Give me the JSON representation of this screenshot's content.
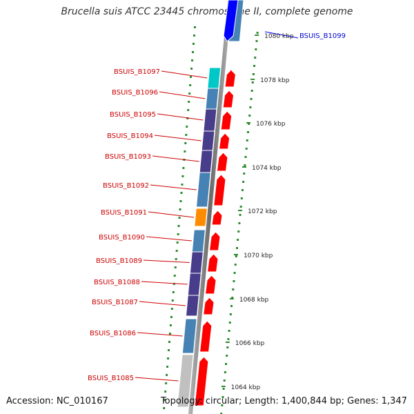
{
  "title": "Brucella suis ATCC 23445 chromosome II, complete genome",
  "accession_text": "Accession: NC_010167",
  "summary_text": "Topology: circular; Length: 1,400,844 bp; Genes: 1,347",
  "colors": {
    "gene_label": "#cc0000",
    "highlight_label": "#0000cc",
    "forward_strand": "#ff0000",
    "tick_dots": "#2e8b2e",
    "backbone": "#808080"
  },
  "scale_labels": [
    "1080 kbp",
    "1078 kbp",
    "1076 kbp",
    "1074 kbp",
    "1072 kbp",
    "1070 kbp",
    "1068 kbp",
    "1066 kbp",
    "1064 kbp"
  ],
  "genes": [
    {
      "label": "BSUIS_B1097",
      "color": "#00c8c8"
    },
    {
      "label": "BSUIS_B1096",
      "color": "#4682b4"
    },
    {
      "label": "BSUIS_B1095",
      "color": "#483d8b"
    },
    {
      "label": "BSUIS_B1094",
      "color": "#483d8b"
    },
    {
      "label": "BSUIS_B1093",
      "color": "#483d8b"
    },
    {
      "label": "BSUIS_B1092",
      "color": "#4682b4"
    },
    {
      "label": "BSUIS_B1091",
      "color": "#ff8c00"
    },
    {
      "label": "BSUIS_B1090",
      "color": "#4682b4"
    },
    {
      "label": "BSUIS_B1089",
      "color": "#483d8b"
    },
    {
      "label": "BSUIS_B1088",
      "color": "#483d8b"
    },
    {
      "label": "BSUIS_B1087",
      "color": "#483d8b"
    },
    {
      "label": "BSUIS_B1086",
      "color": "#4682b4"
    },
    {
      "label": "BSUIS_B1085",
      "color": "#c0c0c0"
    }
  ],
  "highlighted_gene": {
    "label": "BSUIS_B1099",
    "color": "#0000ff"
  }
}
